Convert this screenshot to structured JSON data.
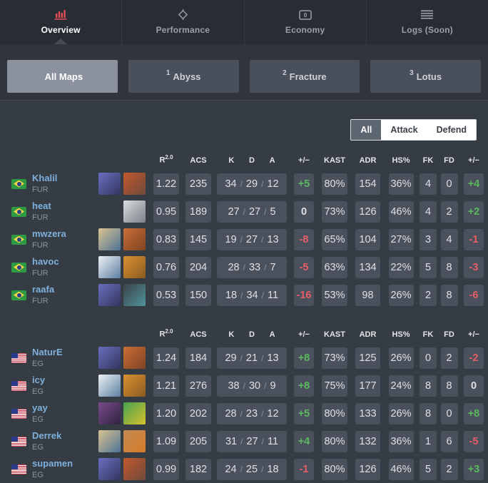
{
  "nav": {
    "tabs": [
      {
        "label": "Overview",
        "active": true
      },
      {
        "label": "Performance",
        "active": false
      },
      {
        "label": "Economy",
        "active": false
      },
      {
        "label": "Logs (Soon)",
        "active": false
      }
    ]
  },
  "maps": [
    {
      "number": "",
      "label": "All Maps",
      "active": true
    },
    {
      "number": "1",
      "label": "Abyss",
      "active": false
    },
    {
      "number": "2",
      "label": "Fracture",
      "active": false
    },
    {
      "number": "3",
      "label": "Lotus",
      "active": false
    }
  ],
  "filter": {
    "options": [
      {
        "label": "All",
        "selected": true
      },
      {
        "label": "Attack",
        "selected": false
      },
      {
        "label": "Defend",
        "selected": false
      }
    ]
  },
  "columns": [
    {
      "label": "R",
      "sup": "2.0"
    },
    {
      "label": "ACS"
    },
    {
      "label": "K"
    },
    {
      "label": "D"
    },
    {
      "label": "A"
    },
    {
      "label": "+/−"
    },
    {
      "label": "KAST"
    },
    {
      "label": "ADR"
    },
    {
      "label": "HS%"
    },
    {
      "label": "FK"
    },
    {
      "label": "FD"
    },
    {
      "label": "+/−"
    }
  ],
  "kda_separator": "/",
  "colors": {
    "accent_red": "#e04f59",
    "positive": "#5cb961",
    "negative": "#e55e68",
    "active_map_tab": "#8b919d",
    "stat_cell_bg": "#4b515c",
    "player_name": "#7fb0dc"
  },
  "agent_colors": {
    "omen": [
      "#6a6fc0",
      "#32355e"
    ],
    "brimstone": [
      "#c2592c",
      "#6e4a3c"
    ],
    "cypher": [
      "#d9dde0",
      "#7c8088"
    ],
    "sova": [
      "#d9c490",
      "#4d7296"
    ],
    "breach": [
      "#c96f36",
      "#7e4323"
    ],
    "jett": [
      "#eef1f4",
      "#5d80a2"
    ],
    "raze": [
      "#d99230",
      "#8a5a22"
    ],
    "sage": [
      "#3c4148",
      "#4f949b"
    ],
    "astra": [
      "#7a4a8a",
      "#2f2440"
    ],
    "killjoy": [
      "#46a24f",
      "#d7c12e"
    ],
    "tejo": [
      "#c08b52",
      "#d87a2b"
    ]
  },
  "teams": [
    {
      "players": [
        {
          "name": "Khalil",
          "team": "FUR",
          "flag": "br",
          "agents": [
            "omen",
            "brimstone"
          ],
          "rating": "1.22",
          "acs": "235",
          "k": "34",
          "d": "29",
          "a": "12",
          "plus_minus": "+5",
          "kast": "80%",
          "adr": "154",
          "hs": "36%",
          "fk": "4",
          "fd": "0",
          "fk_fd_plus_minus": "+4"
        },
        {
          "name": "heat",
          "team": "FUR",
          "flag": "br",
          "agents": [
            "cypher"
          ],
          "rating": "0.95",
          "acs": "189",
          "k": "27",
          "d": "27",
          "a": "5",
          "plus_minus": "0",
          "kast": "73%",
          "adr": "126",
          "hs": "46%",
          "fk": "4",
          "fd": "2",
          "fk_fd_plus_minus": "+2"
        },
        {
          "name": "mwzera",
          "team": "FUR",
          "flag": "br",
          "agents": [
            "sova",
            "breach"
          ],
          "rating": "0.83",
          "acs": "145",
          "k": "19",
          "d": "27",
          "a": "13",
          "plus_minus": "-8",
          "kast": "65%",
          "adr": "104",
          "hs": "27%",
          "fk": "3",
          "fd": "4",
          "fk_fd_plus_minus": "-1"
        },
        {
          "name": "havoc",
          "team": "FUR",
          "flag": "br",
          "agents": [
            "jett",
            "raze"
          ],
          "rating": "0.76",
          "acs": "204",
          "k": "28",
          "d": "33",
          "a": "7",
          "plus_minus": "-5",
          "kast": "63%",
          "adr": "134",
          "hs": "22%",
          "fk": "5",
          "fd": "8",
          "fk_fd_plus_minus": "-3"
        },
        {
          "name": "raafa",
          "team": "FUR",
          "flag": "br",
          "agents": [
            "omen",
            "sage"
          ],
          "rating": "0.53",
          "acs": "150",
          "k": "18",
          "d": "34",
          "a": "11",
          "plus_minus": "-16",
          "kast": "53%",
          "adr": "98",
          "hs": "26%",
          "fk": "2",
          "fd": "8",
          "fk_fd_plus_minus": "-6"
        }
      ]
    },
    {
      "players": [
        {
          "name": "NaturE",
          "team": "EG",
          "flag": "us",
          "agents": [
            "omen",
            "breach"
          ],
          "rating": "1.24",
          "acs": "184",
          "k": "29",
          "d": "21",
          "a": "13",
          "plus_minus": "+8",
          "kast": "73%",
          "adr": "125",
          "hs": "26%",
          "fk": "0",
          "fd": "2",
          "fk_fd_plus_minus": "-2"
        },
        {
          "name": "icy",
          "team": "EG",
          "flag": "us",
          "agents": [
            "jett",
            "raze"
          ],
          "rating": "1.21",
          "acs": "276",
          "k": "38",
          "d": "30",
          "a": "9",
          "plus_minus": "+8",
          "kast": "75%",
          "adr": "177",
          "hs": "24%",
          "fk": "8",
          "fd": "8",
          "fk_fd_plus_minus": "0"
        },
        {
          "name": "yay",
          "team": "EG",
          "flag": "us",
          "agents": [
            "astra",
            "killjoy"
          ],
          "rating": "1.20",
          "acs": "202",
          "k": "28",
          "d": "23",
          "a": "12",
          "plus_minus": "+5",
          "kast": "80%",
          "adr": "133",
          "hs": "26%",
          "fk": "8",
          "fd": "0",
          "fk_fd_plus_minus": "+8"
        },
        {
          "name": "Derrek",
          "team": "EG",
          "flag": "us",
          "agents": [
            "sova",
            "tejo"
          ],
          "rating": "1.09",
          "acs": "205",
          "k": "31",
          "d": "27",
          "a": "11",
          "plus_minus": "+4",
          "kast": "80%",
          "adr": "132",
          "hs": "36%",
          "fk": "1",
          "fd": "6",
          "fk_fd_plus_minus": "-5"
        },
        {
          "name": "supamen",
          "team": "EG",
          "flag": "us",
          "agents": [
            "omen",
            "brimstone"
          ],
          "rating": "0.99",
          "acs": "182",
          "k": "24",
          "d": "25",
          "a": "18",
          "plus_minus": "-1",
          "kast": "80%",
          "adr": "126",
          "hs": "46%",
          "fk": "5",
          "fd": "2",
          "fk_fd_plus_minus": "+3"
        }
      ]
    }
  ]
}
